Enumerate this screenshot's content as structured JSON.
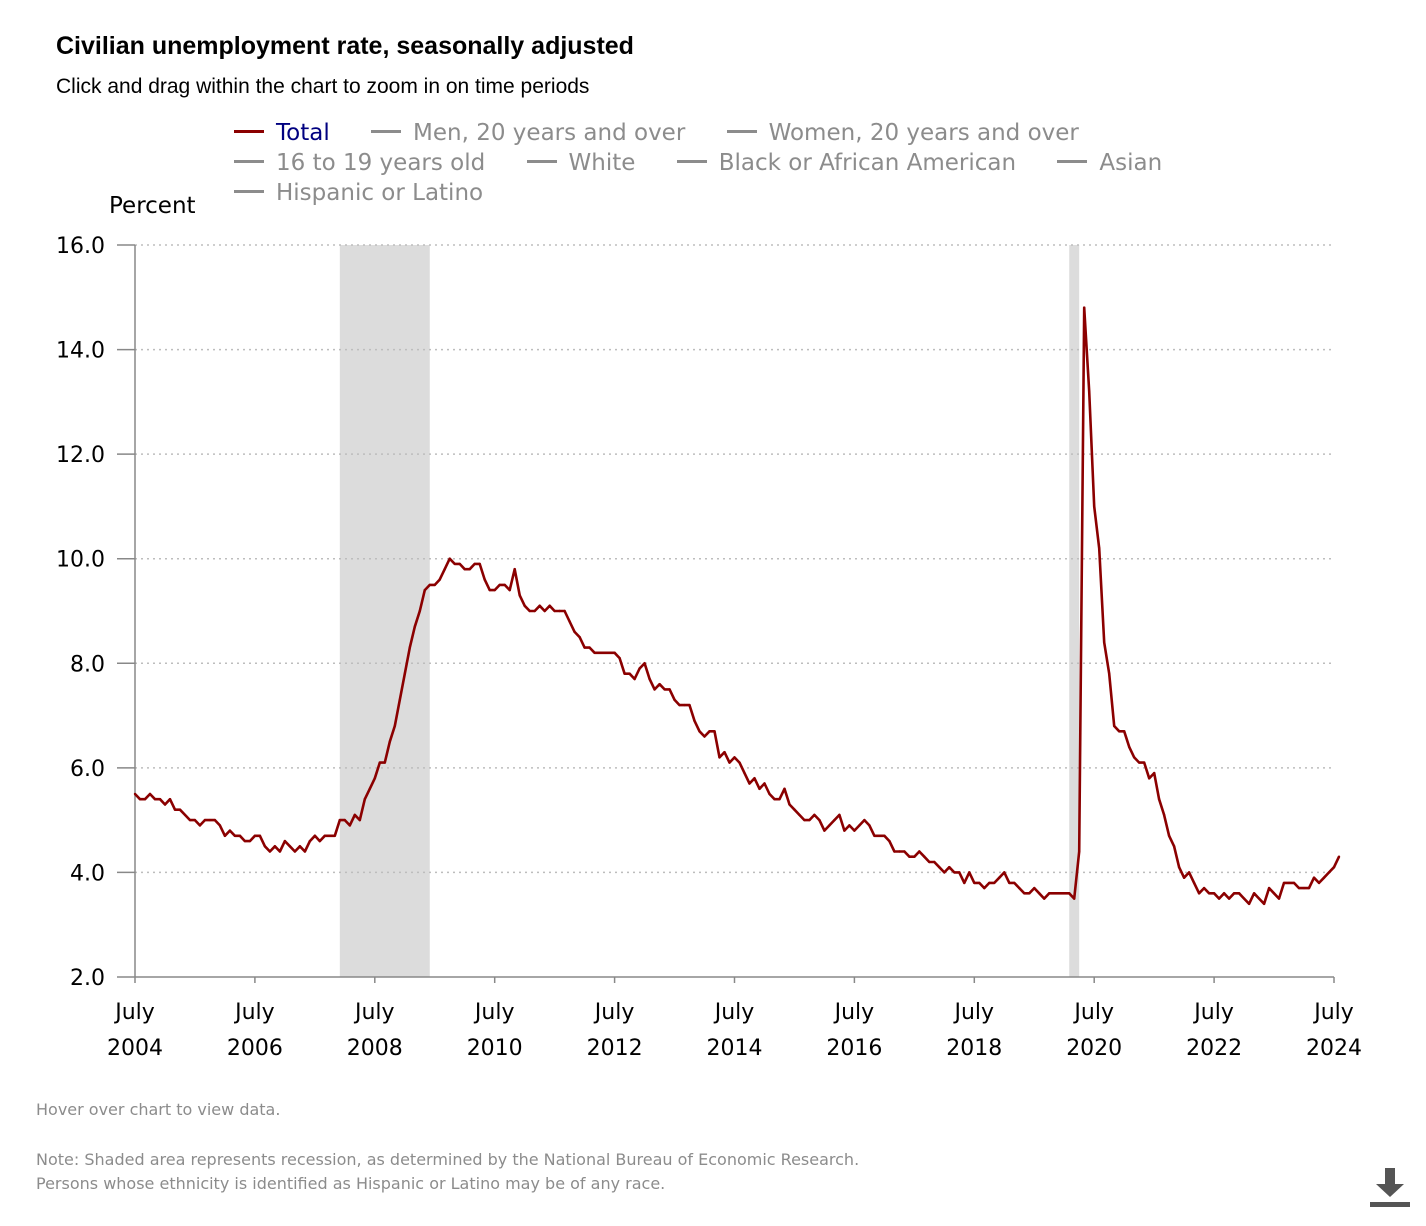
{
  "header": {
    "title": "Civilian unemployment rate, seasonally adjusted",
    "subtitle": "Click and drag within the chart to zoom in on time periods"
  },
  "legend": {
    "items": [
      {
        "label": "Total",
        "active": true,
        "color": "#8b0000"
      },
      {
        "label": "Men, 20 years and over",
        "active": false
      },
      {
        "label": "Women, 20 years and over",
        "active": false
      },
      {
        "label": "16 to 19 years old",
        "active": false
      },
      {
        "label": "White",
        "active": false
      },
      {
        "label": "Black or African American",
        "active": false
      },
      {
        "label": "Asian",
        "active": false
      },
      {
        "label": "Hispanic or Latino",
        "active": false
      }
    ]
  },
  "footer": {
    "hover_note": "Hover over chart to view data.",
    "note_line1": "Note: Shaded area represents recession, as determined by the National Bureau of Economic Research.",
    "note_line2": "Persons whose ethnicity is identified as Hispanic or Latino may be of any race.",
    "download_icon": "download-icon"
  },
  "colors": {
    "series": "#8b0000",
    "recession": "#dcdcdc",
    "grid": "#bdbdbd",
    "axis": "#888888"
  },
  "chart_data": {
    "type": "line",
    "title": "Civilian unemployment rate, seasonally adjusted",
    "ylabel": "Percent",
    "xlabel": "",
    "ylim": [
      2.0,
      16.0
    ],
    "yticks": [
      "2.0",
      "4.0",
      "6.0",
      "8.0",
      "10.0",
      "12.0",
      "14.0",
      "16.0"
    ],
    "xticks": [
      {
        "date": "2004-07",
        "line1": "July",
        "line2": "2004"
      },
      {
        "date": "2006-07",
        "line1": "July",
        "line2": "2006"
      },
      {
        "date": "2008-07",
        "line1": "July",
        "line2": "2008"
      },
      {
        "date": "2010-07",
        "line1": "July",
        "line2": "2010"
      },
      {
        "date": "2012-07",
        "line1": "July",
        "line2": "2012"
      },
      {
        "date": "2014-07",
        "line1": "July",
        "line2": "2014"
      },
      {
        "date": "2016-07",
        "line1": "July",
        "line2": "2016"
      },
      {
        "date": "2018-07",
        "line1": "July",
        "line2": "2018"
      },
      {
        "date": "2020-07",
        "line1": "July",
        "line2": "2020"
      },
      {
        "date": "2022-07",
        "line1": "July",
        "line2": "2022"
      },
      {
        "date": "2024-07",
        "line1": "July",
        "line2": "2024"
      }
    ],
    "grid": "horizontal dotted",
    "legend_position": "top",
    "recessions": [
      {
        "start": "2007-12",
        "end": "2009-06"
      },
      {
        "start": "2020-02",
        "end": "2020-04"
      }
    ],
    "series": [
      {
        "name": "Total",
        "start": "2004-07",
        "frequency": "monthly",
        "values": [
          5.5,
          5.4,
          5.4,
          5.5,
          5.4,
          5.4,
          5.3,
          5.4,
          5.2,
          5.2,
          5.1,
          5.0,
          5.0,
          4.9,
          5.0,
          5.0,
          5.0,
          4.9,
          4.7,
          4.8,
          4.7,
          4.7,
          4.6,
          4.6,
          4.7,
          4.7,
          4.5,
          4.4,
          4.5,
          4.4,
          4.6,
          4.5,
          4.4,
          4.5,
          4.4,
          4.6,
          4.7,
          4.6,
          4.7,
          4.7,
          4.7,
          5.0,
          5.0,
          4.9,
          5.1,
          5.0,
          5.4,
          5.6,
          5.8,
          6.1,
          6.1,
          6.5,
          6.8,
          7.3,
          7.8,
          8.3,
          8.7,
          9.0,
          9.4,
          9.5,
          9.5,
          9.6,
          9.8,
          10.0,
          9.9,
          9.9,
          9.8,
          9.8,
          9.9,
          9.9,
          9.6,
          9.4,
          9.4,
          9.5,
          9.5,
          9.4,
          9.8,
          9.3,
          9.1,
          9.0,
          9.0,
          9.1,
          9.0,
          9.1,
          9.0,
          9.0,
          9.0,
          8.8,
          8.6,
          8.5,
          8.3,
          8.3,
          8.2,
          8.2,
          8.2,
          8.2,
          8.2,
          8.1,
          7.8,
          7.8,
          7.7,
          7.9,
          8.0,
          7.7,
          7.5,
          7.6,
          7.5,
          7.5,
          7.3,
          7.2,
          7.2,
          7.2,
          6.9,
          6.7,
          6.6,
          6.7,
          6.7,
          6.2,
          6.3,
          6.1,
          6.2,
          6.1,
          5.9,
          5.7,
          5.8,
          5.6,
          5.7,
          5.5,
          5.4,
          5.4,
          5.6,
          5.3,
          5.2,
          5.1,
          5.0,
          5.0,
          5.1,
          5.0,
          4.8,
          4.9,
          5.0,
          5.1,
          4.8,
          4.9,
          4.8,
          4.9,
          5.0,
          4.9,
          4.7,
          4.7,
          4.7,
          4.6,
          4.4,
          4.4,
          4.4,
          4.3,
          4.3,
          4.4,
          4.3,
          4.2,
          4.2,
          4.1,
          4.0,
          4.1,
          4.0,
          4.0,
          3.8,
          4.0,
          3.8,
          3.8,
          3.7,
          3.8,
          3.8,
          3.9,
          4.0,
          3.8,
          3.8,
          3.7,
          3.6,
          3.6,
          3.7,
          3.6,
          3.5,
          3.6,
          3.6,
          3.6,
          3.6,
          3.6,
          3.5,
          4.4,
          14.8,
          13.2,
          11.0,
          10.2,
          8.4,
          7.8,
          6.8,
          6.7,
          6.7,
          6.4,
          6.2,
          6.1,
          6.1,
          5.8,
          5.9,
          5.4,
          5.1,
          4.7,
          4.5,
          4.1,
          3.9,
          4.0,
          3.8,
          3.6,
          3.7,
          3.6,
          3.6,
          3.5,
          3.6,
          3.5,
          3.6,
          3.6,
          3.5,
          3.4,
          3.6,
          3.5,
          3.4,
          3.7,
          3.6,
          3.5,
          3.8,
          3.8,
          3.8,
          3.7,
          3.7,
          3.7,
          3.9,
          3.8,
          3.9,
          4.0,
          4.1,
          4.3
        ]
      }
    ]
  }
}
